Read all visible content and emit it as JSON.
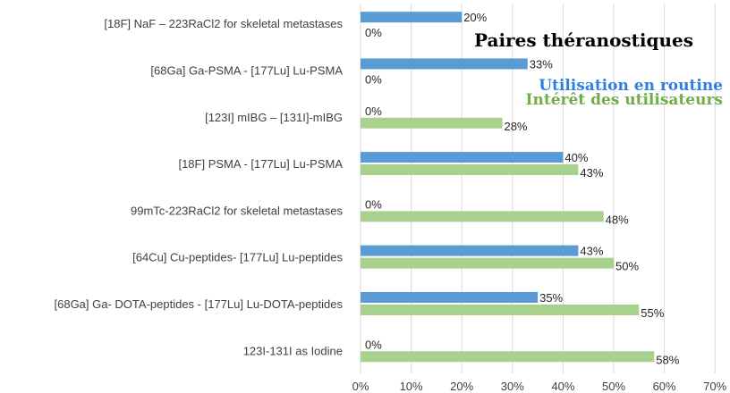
{
  "chart_data": {
    "type": "bar",
    "orientation": "horizontal",
    "title": "Paires théranostiques",
    "categories": [
      "[18F] NaF – 223RaCl2 for skeletal metastases",
      "[68Ga] Ga-PSMA - [177Lu] Lu-PSMA",
      "[123I] mIBG – [131I]-mIBG",
      "[18F] PSMA - [177Lu] Lu-PSMA",
      "99mTc-223RaCl2 for skeletal metastases",
      "[64Cu] Cu-peptides- [177Lu] Lu-peptides",
      "[68Ga] Ga- DOTA-peptides - [177Lu] Lu-DOTA-peptides",
      "123I-131I as Iodine"
    ],
    "series": [
      {
        "name": "Utilisation en routine",
        "color": "#5b9bd5",
        "legend_color": "#2f7ee0",
        "values": [
          20,
          33,
          0,
          40,
          0,
          43,
          35,
          0
        ],
        "labels": [
          "20%",
          "33%",
          "0%",
          "40%",
          "0%",
          "43%",
          "35%",
          "0%"
        ]
      },
      {
        "name": "Intérêt des utilisateurs",
        "color": "#a9d18e",
        "legend_color": "#70ad47",
        "values": [
          0,
          0,
          28,
          43,
          48,
          50,
          55,
          58
        ],
        "labels": [
          "0%",
          "0%",
          "28%",
          "43%",
          "48%",
          "50%",
          "55%",
          "58%"
        ]
      }
    ],
    "xlim": [
      0,
      70
    ],
    "xticks": [
      "0%",
      "10%",
      "20%",
      "30%",
      "40%",
      "50%",
      "60%",
      "70%"
    ],
    "grid": true,
    "legend_position": "top-right"
  }
}
